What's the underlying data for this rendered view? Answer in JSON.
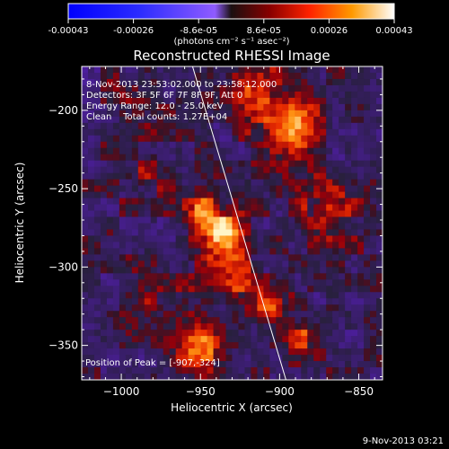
{
  "colorbar": {
    "tick_labels": [
      "-0.00043",
      "-0.00026",
      "-8.6e-05",
      "8.6e-05",
      "0.00026",
      "0.00043"
    ],
    "unit_label": "(photons cm⁻² s⁻¹ asec⁻²)",
    "min": -0.00043,
    "max": 0.00043
  },
  "chart_data": {
    "type": "heatmap",
    "title": "Reconstructed RHESSI Image",
    "xlabel": "Heliocentric X (arcsec)",
    "ylabel": "Heliocentric Y (arcsec)",
    "xlim": [
      -1025,
      -835
    ],
    "ylim": [
      -372,
      -172
    ],
    "x_ticks": [
      {
        "value": -1000,
        "label": "−1000"
      },
      {
        "value": -950,
        "label": "−950"
      },
      {
        "value": -900,
        "label": "−900"
      },
      {
        "value": -850,
        "label": "−850"
      }
    ],
    "y_ticks": [
      {
        "value": -200,
        "label": "−200"
      },
      {
        "value": -250,
        "label": "−250"
      },
      {
        "value": -300,
        "label": "−300"
      },
      {
        "value": -350,
        "label": "−350"
      }
    ],
    "annotations": [
      "8-Nov-2013 23:53:02.000 to 23:58:12.000",
      "Detectors: 3F 5F 6F 7F 8F 9F, Att 0",
      "Energy Range: 12.0 - 25.0 keV",
      "Clean    Total counts: 1.27E+04"
    ],
    "peak_label": "Position of Peak = [-907,-324]",
    "peak": {
      "x": -907,
      "y": -324
    },
    "limb_line": [
      {
        "x": -955,
        "y": -172
      },
      {
        "x": -896,
        "y": -372
      }
    ],
    "sources": [
      {
        "x": -936,
        "y": -279,
        "sigma": 11,
        "amp": 1.0
      },
      {
        "x": -950,
        "y": -262,
        "sigma": 10,
        "amp": 0.7
      },
      {
        "x": -930,
        "y": -305,
        "sigma": 13,
        "amp": 0.55
      },
      {
        "x": -948,
        "y": -350,
        "sigma": 13,
        "amp": 0.85
      },
      {
        "x": -907,
        "y": -324,
        "sigma": 8,
        "amp": 0.95
      },
      {
        "x": -895,
        "y": -210,
        "sigma": 15,
        "amp": 0.9
      },
      {
        "x": -920,
        "y": -185,
        "sigma": 13,
        "amp": 0.6
      },
      {
        "x": -870,
        "y": -265,
        "sigma": 15,
        "amp": 0.55
      },
      {
        "x": -885,
        "y": -345,
        "sigma": 12,
        "amp": 0.55
      },
      {
        "x": -985,
        "y": -240,
        "sigma": 16,
        "amp": 0.35
      },
      {
        "x": -995,
        "y": -195,
        "sigma": 14,
        "amp": 0.3
      },
      {
        "x": -975,
        "y": -320,
        "sigma": 16,
        "amp": 0.25
      }
    ],
    "date_stamp": "9-Nov-2013 03:21"
  }
}
